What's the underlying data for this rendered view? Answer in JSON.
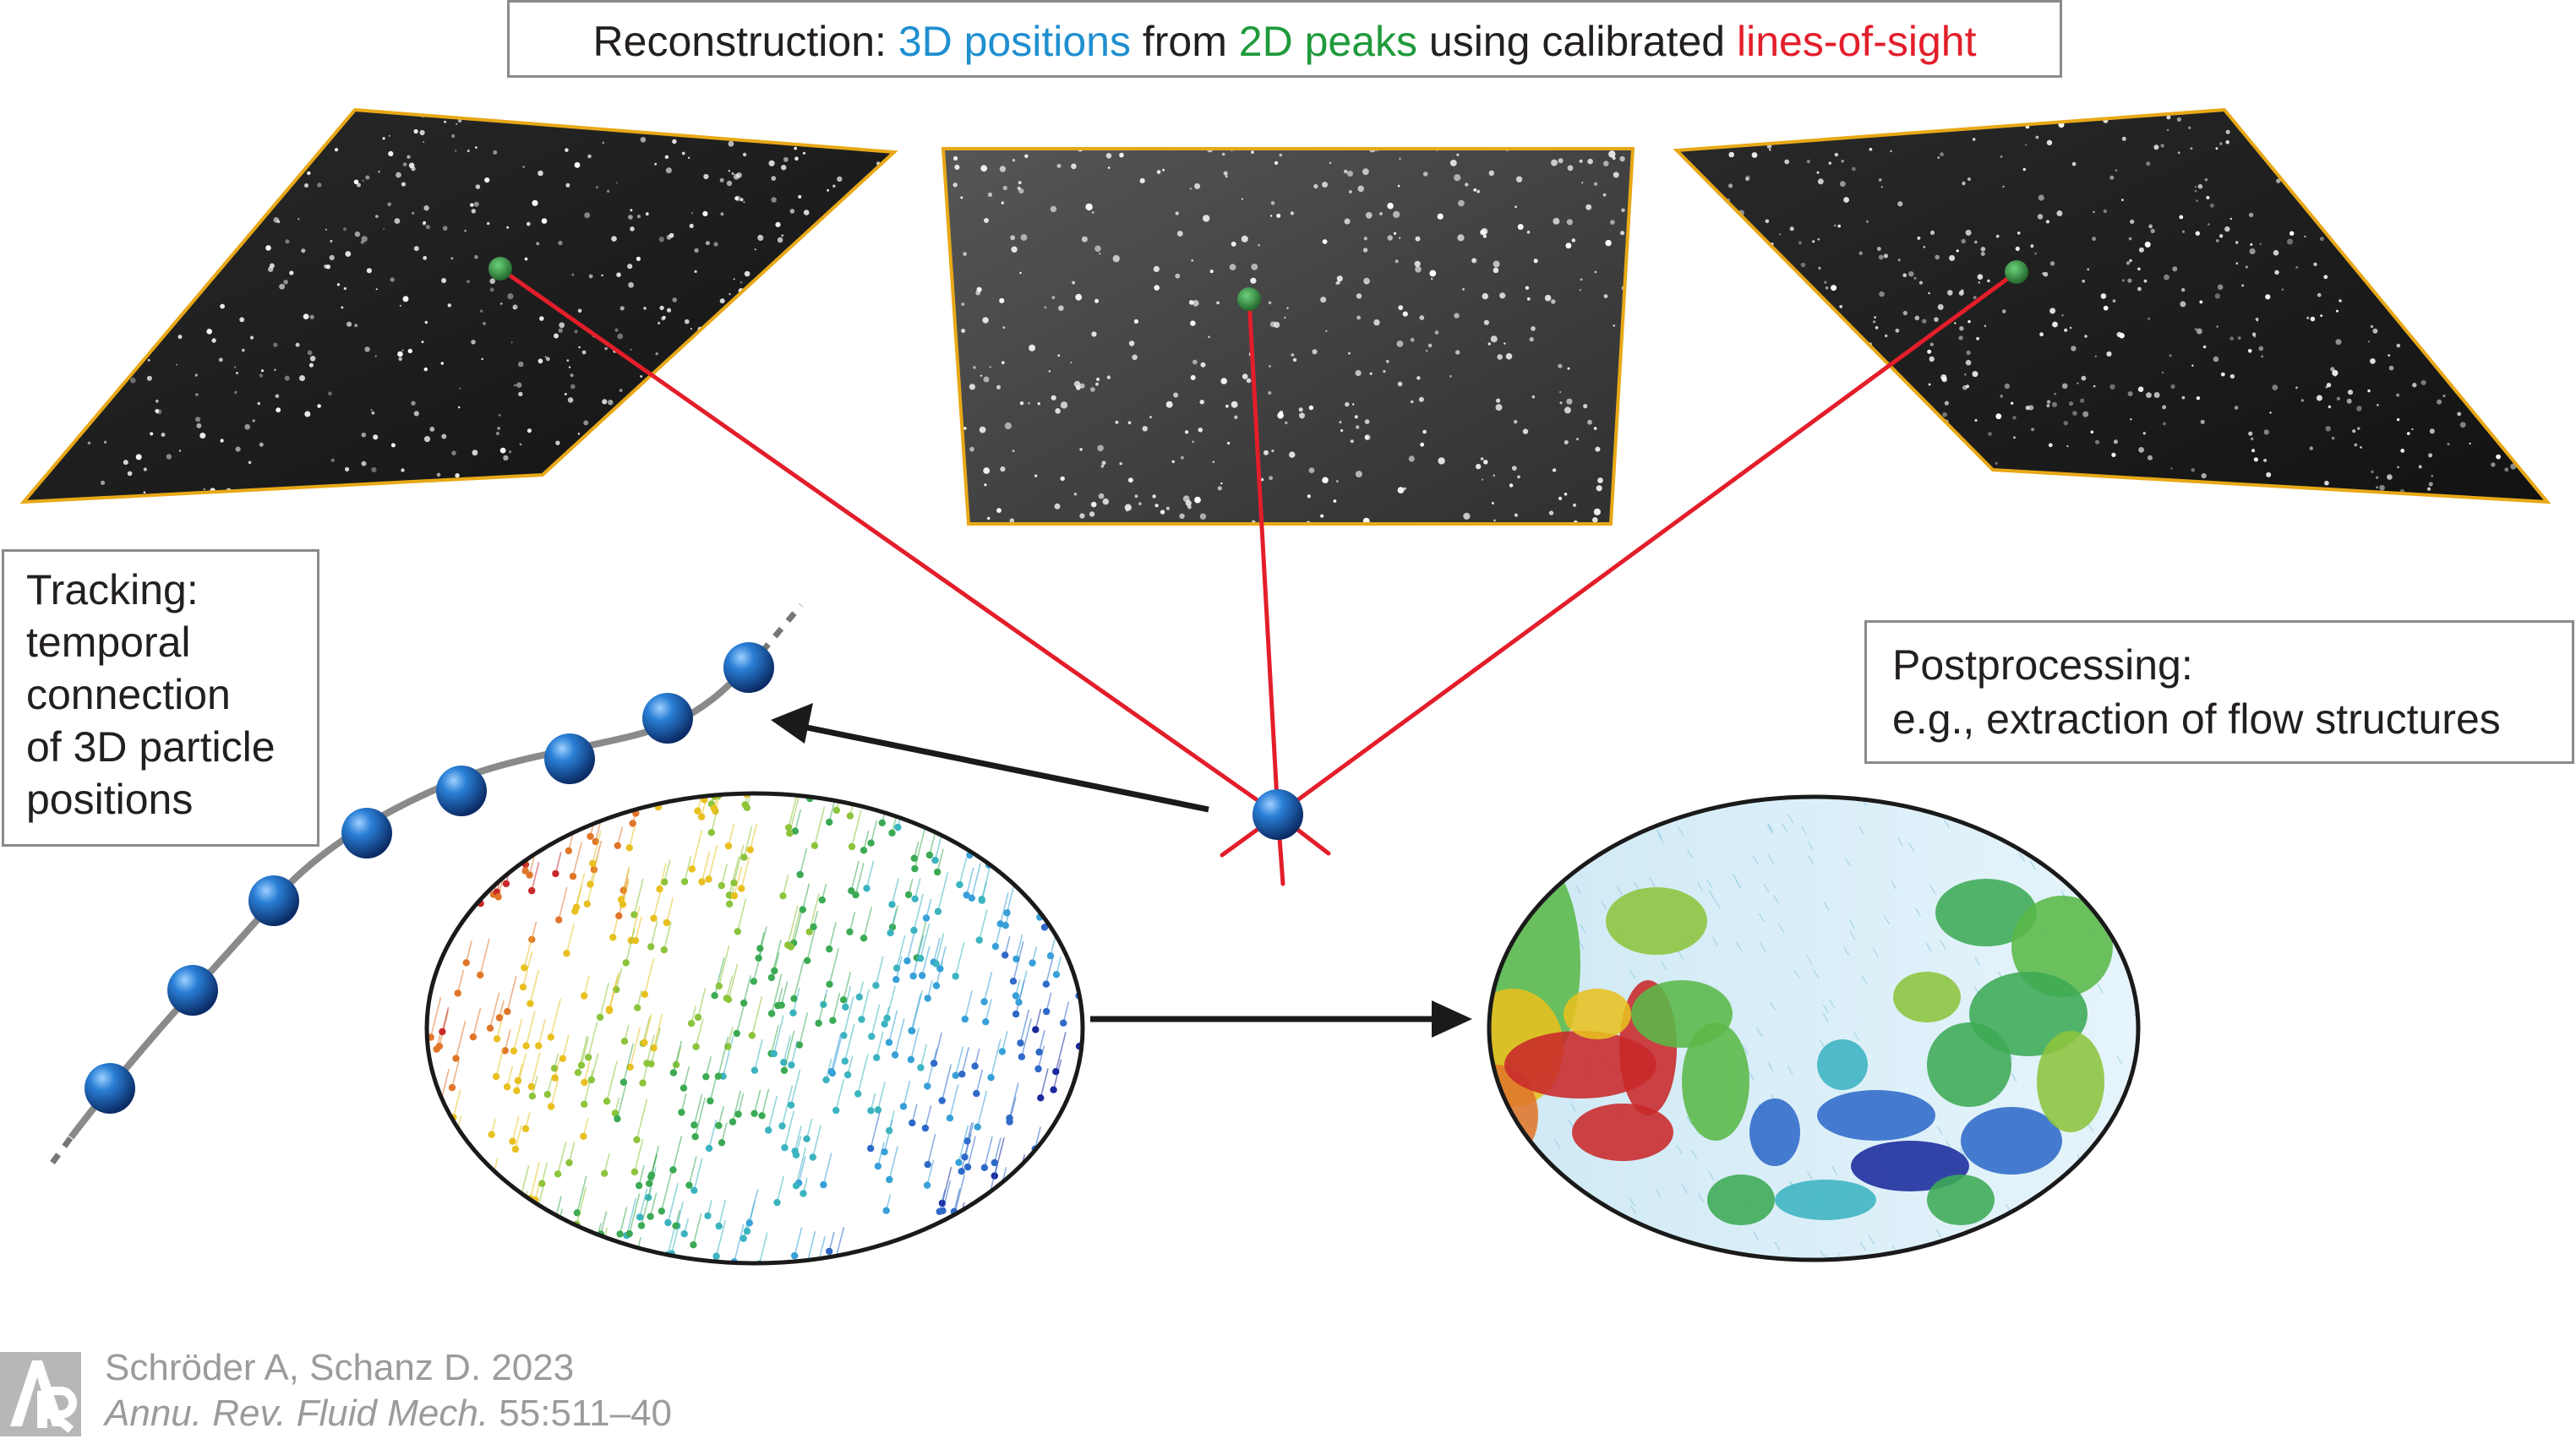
{
  "title": {
    "prefix": "Reconstruction: ",
    "part_3d": "3D positions",
    "mid1": " from ",
    "part_2d": "2D peaks",
    "mid2": " using calibrated ",
    "part_los": "lines-of-sight"
  },
  "tracking": {
    "lines": [
      "Tracking:",
      "temporal",
      "connection",
      "of 3D particle",
      "positions"
    ]
  },
  "postprocessing": {
    "lines": [
      "Postprocessing:",
      "e.g., extraction of flow structures"
    ]
  },
  "credit": {
    "authors": "Schröder A, Schanz D. 2023",
    "journal": "Annu. Rev. Fluid Mech.",
    "pages": " 55:511–40"
  },
  "colors": {
    "line_of_sight": "#e31e2a",
    "peak": "#2e8b3a",
    "frame": "#e8a817",
    "particle": "#1565c0",
    "text_blue": "#1f8fd0",
    "text_green": "#1f9a3c",
    "text_red": "#e31e2a"
  }
}
